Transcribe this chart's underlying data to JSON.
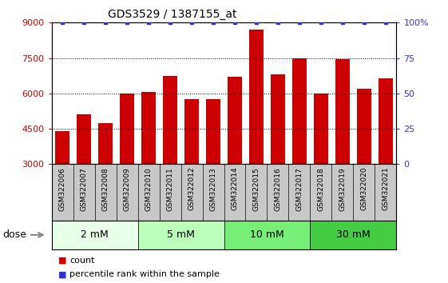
{
  "title": "GDS3529 / 1387155_at",
  "categories": [
    "GSM322006",
    "GSM322007",
    "GSM322008",
    "GSM322009",
    "GSM322010",
    "GSM322011",
    "GSM322012",
    "GSM322013",
    "GSM322014",
    "GSM322015",
    "GSM322016",
    "GSM322017",
    "GSM322018",
    "GSM322019",
    "GSM322020",
    "GSM322021"
  ],
  "counts": [
    4400,
    5100,
    4750,
    6000,
    6050,
    6750,
    5750,
    5750,
    6700,
    8700,
    6800,
    7500,
    6000,
    7450,
    6200,
    6650
  ],
  "percentile_ranks": [
    100,
    100,
    100,
    100,
    100,
    100,
    100,
    100,
    100,
    100,
    100,
    100,
    100,
    100,
    100,
    100
  ],
  "bar_color": "#cc0000",
  "dot_color": "#3333cc",
  "ylim_left": [
    3000,
    9000
  ],
  "ylim_right": [
    0,
    100
  ],
  "yticks_left": [
    3000,
    4500,
    6000,
    7500,
    9000
  ],
  "yticks_right": [
    0,
    25,
    50,
    75,
    100
  ],
  "ytick_labels_left": [
    "3000",
    "4500",
    "6000",
    "7500",
    "9000"
  ],
  "ytick_labels_right": [
    "0",
    "25",
    "50",
    "75",
    "100%"
  ],
  "dose_groups": [
    {
      "label": "2 mM",
      "start": 0,
      "end": 4,
      "color": "#e8ffe8"
    },
    {
      "label": "5 mM",
      "start": 4,
      "end": 8,
      "color": "#bbffbb"
    },
    {
      "label": "10 mM",
      "start": 8,
      "end": 12,
      "color": "#77ee77"
    },
    {
      "label": "30 mM",
      "start": 12,
      "end": 16,
      "color": "#44cc44"
    }
  ],
  "legend_count_label": "count",
  "legend_percentile_label": "percentile rank within the sample",
  "dose_label": "dose",
  "xlabels_bg": "#c8c8c8",
  "bg_color": "#ffffff",
  "tick_label_color_left": "#cc0000",
  "tick_label_color_right": "#3333cc"
}
